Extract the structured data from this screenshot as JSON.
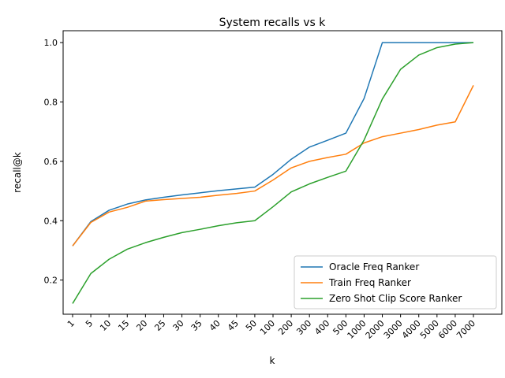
{
  "chart_data": {
    "type": "line",
    "title": "System recalls vs k",
    "xlabel": "k",
    "ylabel": "recall@k",
    "categories": [
      "1",
      "5",
      "10",
      "15",
      "20",
      "25",
      "30",
      "35",
      "40",
      "45",
      "50",
      "100",
      "200",
      "300",
      "400",
      "500",
      "1000",
      "2000",
      "3000",
      "4000",
      "5000",
      "6000",
      "7000"
    ],
    "ylim": [
      0.085,
      1.04
    ],
    "yticks": [
      0.2,
      0.4,
      0.6,
      0.8,
      1.0
    ],
    "ytick_labels": [
      "0.2",
      "0.4",
      "0.6",
      "0.8",
      "1.0"
    ],
    "legend_position": "lower-right",
    "series": [
      {
        "name": "Oracle Freq Ranker",
        "color": "#1f77b4",
        "values": [
          0.315,
          0.397,
          0.435,
          0.456,
          0.47,
          0.479,
          0.487,
          0.494,
          0.501,
          0.507,
          0.513,
          0.556,
          0.607,
          0.648,
          0.671,
          0.695,
          0.812,
          1.0,
          1.0,
          1.0,
          1.0,
          1.0,
          1.0
        ]
      },
      {
        "name": "Train Freq Ranker",
        "color": "#ff7f0e",
        "values": [
          0.315,
          0.394,
          0.429,
          0.445,
          0.466,
          0.471,
          0.475,
          0.479,
          0.486,
          0.492,
          0.5,
          0.537,
          0.578,
          0.6,
          0.613,
          0.624,
          0.662,
          0.683,
          0.695,
          0.707,
          0.722,
          0.733,
          0.856
        ]
      },
      {
        "name": "Zero Shot Clip Score Ranker",
        "color": "#2ca02c",
        "values": [
          0.121,
          0.222,
          0.27,
          0.304,
          0.326,
          0.344,
          0.36,
          0.371,
          0.383,
          0.393,
          0.4,
          0.447,
          0.497,
          0.524,
          0.546,
          0.567,
          0.672,
          0.81,
          0.91,
          0.958,
          0.983,
          0.995,
          1.0
        ]
      }
    ]
  }
}
